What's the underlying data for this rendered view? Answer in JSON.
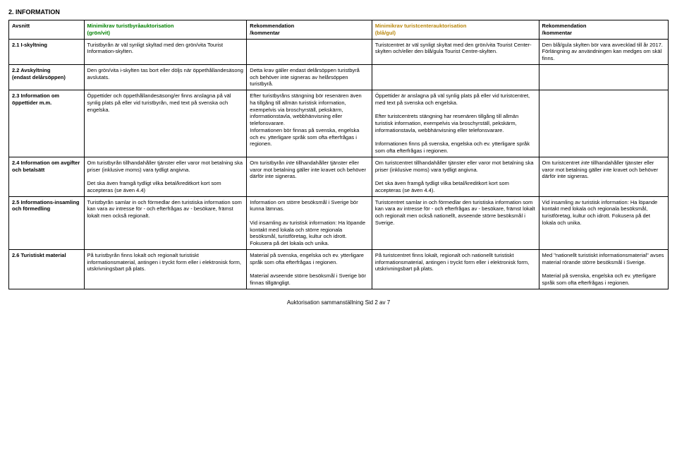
{
  "section_title": "2. INFORMATION",
  "headers": {
    "avsnitt": "Avsnitt",
    "min_green_l1": "Minimikrav turistbyråauktorisation",
    "min_green_l2": "(grön/vit)",
    "rek1_l1": "Rekommendation",
    "rek1_l2": "/kommentar",
    "min_blue_l1": "Minimikrav turistcenterauktorisation",
    "min_blue_l2": "(blå/gul)",
    "rek2_l1": "Rekommendation",
    "rek2_l2": "/kommentar"
  },
  "r1": {
    "avsnitt": "2.1 I-skyltning",
    "c2": "Turistbyrån är väl synligt skyltad med den grön/vita Tourist Information-skylten.",
    "c3": "",
    "c4": "Turistcentret är väl synligt skyltat med den grön/vita Tourist Center-skylten och/eller den blå/gula Tourist Centre-skylten.",
    "c5": "Den blå/gula skylten bör vara avvecklad till år 2017. Förlängning av användningen kan medges om skäl finns."
  },
  "r2": {
    "avsnitt_l1": "2.2 Avskyltning",
    "avsnitt_l2": "(endast delårsöppen)",
    "c2": "Den grön/vita i-skylten tas bort eller döljs när öppethållandesäsong avslutats.",
    "c3": "Detta krav gäller endast delårsöppen turistbyrå och behöver inte signeras av helårsöppen turistbyrå.",
    "c4": "",
    "c5": ""
  },
  "r3": {
    "avsnitt": "2.3 Information om öppettider m.m.",
    "c2": "Öppettider och öppethållandesäsong/er finns anslagna på väl synlig plats på eller vid turistbyrån, med text på svenska och engelska.",
    "c3p1": "Efter turistbyråns stängning bör resenären även ha tillgång till allmän turistisk information, exempelvis via broschyrställ, pekskärm, informationstavla, webbhänvisning eller telefonsvarare.",
    "c3p2": "Informationen bör finnas på svenska, engelska och ev. ytterligare språk som ofta efterfrågas i regionen.",
    "c4p1": "Öppettider är anslagna på väl synlig plats på eller vid turistcentret, med text på svenska och engelska.",
    "c4p2": "Efter turistcentrets stängning har resenären tillgång till allmän turistisk information, exempelvis via broschyrställ, pekskärm, informationstavla, webbhänvisning eller telefonsvarare.",
    "c4p3": "Informationen finns på svenska, engelska och ev. ytterligare språk som ofta efterfrågas i regionen.",
    "c5": ""
  },
  "r4": {
    "avsnitt": "2.4 Information om avgifter och betalsätt",
    "c2p1": "Om turistbyrån tillhandahåller tjänster eller varor mot betalning ska priser (inklusive moms) vara tydligt angivna.",
    "c2p2": "Det ska även framgå tydligt vilka betal/kreditkort kort som accepteras (se även 4.4)",
    "c3a": "Om turistbyrån ",
    "c3b": "inte",
    "c3c": " tillhandahåller tjänster eller varor mot betalning gäller inte kravet och behöver därför inte signeras.",
    "c4p1": "Om turistcentret tillhandahåller tjänster eller varor mot betalning ska priser (inklusive moms) vara tydligt angivna.",
    "c4p2": "Det ska även framgå tydligt vilka betal/kreditkort kort som accepteras (se även 4.4).",
    "c5a": "Om turistcentret ",
    "c5b": "inte",
    "c5c": " tillhandahåller tjänster eller varor mot betalning gäller inte kravet och behöver därför inte signeras."
  },
  "r5": {
    "avsnitt": "2.5 Informations-insamling och förmedling",
    "c2": "Turistbyrån samlar in och förmedlar den turistiska information som kan vara av intresse för - och efterfrågas av - besökare, främst lokalt men också regionalt.",
    "c3p1": "Information om större besöksmål i Sverige bör kunna lämnas.",
    "c3p2": "Vid insamling av turistisk information: Ha löpande kontakt med lokala och större regionala besöksmål, turistföretag, kultur och idrott. Fokusera på det lokala och unika.",
    "c4": "Turistcentret samlar in och förmedlar den turistiska information som kan vara av intresse för - och efterfrågas av - besökare, främst lokalt och regionalt men också nationellt, avseende större besöksmål i Sverige.",
    "c5p1": "Vid insamling av turistisk information: Ha löpande kontakt med lokala och regionala besöksmål, turistföretag, kultur och idrott. Fokusera på det lokala och unika."
  },
  "r6": {
    "avsnitt": "2.6 Turistiskt material",
    "c2": "På turistbyrån finns lokalt och regionalt turistiskt informationsmaterial, antingen i tryckt form eller i elektronisk form, utskrivningsbart på plats.",
    "c3p1": "Material på svenska, engelska och ev. ytterligare språk som ofta efterfrågas i regionen.",
    "c3p2": "Material avseende större besöksmål i Sverige bör finnas tillgängligt.",
    "c4": "På turistcentret finns lokalt, regionalt och nationellt turistiskt informationsmaterial, antingen i tryckt form eller i elektronisk form, utskrivningsbart på plats.",
    "c5p1": "Med \"nationellt turistiskt informationsmaterial\" avses material rörande större besöksmål i Sverige.",
    "c5p2": "Material på svenska, engelska och ev. ytterligare språk som ofta efterfrågas i regionen."
  },
  "footer": "Auktorisation sammanställning Sid 2 av 7"
}
